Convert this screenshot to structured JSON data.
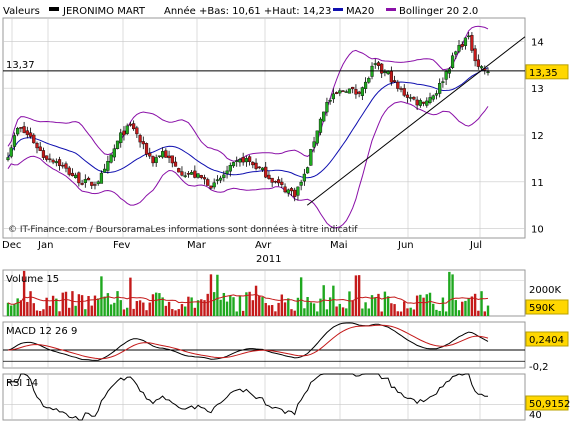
{
  "header": {
    "label": "Valeurs",
    "stock": "JERONIMO MART",
    "range": "Année +Bas: 10,61 +Haut: 14,23",
    "ma_legend": "MA20",
    "boll_legend": "Bollinger 20 2.0"
  },
  "credit": "© IT-Finance.com / BoursoramaLes informations sont données à titre indicatif",
  "colors": {
    "up": "#1fa81f",
    "down": "#c41a1a",
    "ma": "#1010b0",
    "boll": "#8a10a8",
    "grid": "#c8c8c8",
    "macd": "#000000",
    "signal": "#c41a1a",
    "volume_avg": "#c41a1a",
    "last_box": "#ffd700"
  },
  "price_panel": {
    "y_ticks": [
      "14",
      "13",
      "12",
      "11",
      "10"
    ],
    "ref_label": "13,37",
    "last_label": "13,35"
  },
  "x_axis": {
    "months": [
      "Dec",
      "Jan",
      "Fev",
      "Mar",
      "Avr",
      "Mai",
      "Jun",
      "Jul"
    ],
    "year": "2011"
  },
  "volume_panel": {
    "title": "Volume 15",
    "tick": "2000K",
    "last_label": "590K"
  },
  "macd_panel": {
    "title": "MACD 12 26 9",
    "tick": "-0,2",
    "last_label": "0,2404"
  },
  "rsi_panel": {
    "title": "RSI 14",
    "tick": "40",
    "last_label": "50,9152"
  },
  "chart_data": {
    "type": "candlestick",
    "price_ylim": [
      9.8,
      14.5
    ],
    "reference_level": 13.37,
    "last_price": 13.35,
    "year_low": 10.61,
    "year_high": 14.23,
    "trendline": {
      "from": [
        0.595,
        10.5
      ],
      "to": [
        1.0,
        14.1
      ]
    },
    "anchors": [
      [
        0,
        11.6
      ],
      [
        0.02,
        12.15
      ],
      [
        0.045,
        11.95
      ],
      [
        0.07,
        11.55
      ],
      [
        0.095,
        11.45
      ],
      [
        0.12,
        11.2
      ],
      [
        0.145,
        11.0
      ],
      [
        0.17,
        10.95
      ],
      [
        0.19,
        11.2
      ],
      [
        0.205,
        11.6
      ],
      [
        0.225,
        12.05
      ],
      [
        0.245,
        12.2
      ],
      [
        0.265,
        11.75
      ],
      [
        0.285,
        11.45
      ],
      [
        0.305,
        11.65
      ],
      [
        0.325,
        11.35
      ],
      [
        0.345,
        11.2
      ],
      [
        0.365,
        11.15
      ],
      [
        0.385,
        11.05
      ],
      [
        0.405,
        10.9
      ],
      [
        0.425,
        11.15
      ],
      [
        0.445,
        11.35
      ],
      [
        0.465,
        11.5
      ],
      [
        0.485,
        11.35
      ],
      [
        0.505,
        11.2
      ],
      [
        0.525,
        11.0
      ],
      [
        0.545,
        10.85
      ],
      [
        0.565,
        10.75
      ],
      [
        0.585,
        11.15
      ],
      [
        0.605,
        12.0
      ],
      [
        0.625,
        12.65
      ],
      [
        0.645,
        12.85
      ],
      [
        0.665,
        13.0
      ],
      [
        0.685,
        12.9
      ],
      [
        0.705,
        13.1
      ],
      [
        0.72,
        13.5
      ],
      [
        0.735,
        13.35
      ],
      [
        0.75,
        13.3
      ],
      [
        0.765,
        13.0
      ],
      [
        0.785,
        12.85
      ],
      [
        0.805,
        12.7
      ],
      [
        0.825,
        12.75
      ],
      [
        0.845,
        12.95
      ],
      [
        0.865,
        13.4
      ],
      [
        0.885,
        13.85
      ],
      [
        0.905,
        14.1
      ],
      [
        0.925,
        13.5
      ],
      [
        0.945,
        13.35
      ]
    ],
    "volume_ylim": [
      0,
      2600
    ],
    "volume_range_k": [
      250,
      2600
    ],
    "macd_ylim": [
      -0.32,
      0.5
    ],
    "macd_ticks": [
      0.2404,
      -0.2
    ],
    "rsi_ylim": [
      20,
      80
    ],
    "rsi_ticks": [
      40
    ],
    "last_volume_k": 590,
    "last_macd": 0.2404,
    "last_rsi": 50.9152
  }
}
